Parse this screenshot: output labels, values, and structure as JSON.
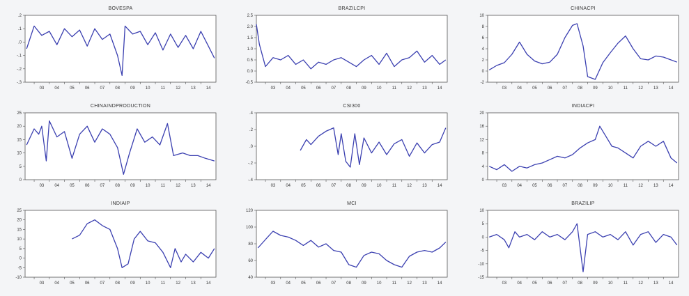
{
  "chart_data": [
    {
      "type": "line",
      "title": "BOVESPA",
      "ylim": [
        -0.3,
        0.2
      ],
      "yticks": [
        ".2",
        ".1",
        ".0",
        "-.1",
        "-.2",
        "-.3"
      ],
      "ytick_values": [
        0.2,
        0.1,
        0.0,
        -0.1,
        -0.2,
        -0.3
      ],
      "xticks": [
        "03",
        "04",
        "05",
        "06",
        "07",
        "08",
        "09",
        "10",
        "11",
        "12",
        "13",
        "14"
      ],
      "x": [
        2002.5,
        2003.0,
        2003.5,
        2004.0,
        2004.5,
        2005.0,
        2005.5,
        2006.0,
        2006.5,
        2007.0,
        2007.5,
        2008.0,
        2008.5,
        2008.8,
        2009.0,
        2009.5,
        2010.0,
        2010.5,
        2011.0,
        2011.5,
        2012.0,
        2012.5,
        2013.0,
        2013.5,
        2014.0,
        2014.5,
        2014.9
      ],
      "series": [
        {
          "values": [
            -0.05,
            0.12,
            0.05,
            0.08,
            -0.02,
            0.1,
            0.04,
            0.09,
            -0.03,
            0.1,
            0.02,
            0.06,
            -0.1,
            -0.25,
            0.12,
            0.06,
            0.08,
            -0.02,
            0.07,
            -0.06,
            0.06,
            -0.04,
            0.05,
            -0.05,
            0.08,
            -0.03,
            -0.12
          ]
        }
      ]
    },
    {
      "type": "line",
      "title": "BRAZILCPI",
      "ylim": [
        -0.5,
        2.5
      ],
      "yticks": [
        "2.5",
        "2.0",
        "1.5",
        "1.0",
        "0.5",
        "0.0",
        "-0.5"
      ],
      "ytick_values": [
        2.5,
        2.0,
        1.5,
        1.0,
        0.5,
        0.0,
        -0.5
      ],
      "xticks": [
        "03",
        "04",
        "05",
        "06",
        "07",
        "08",
        "09",
        "10",
        "11",
        "12",
        "13",
        "14"
      ],
      "x": [
        2002.4,
        2002.6,
        2003.0,
        2003.5,
        2004.0,
        2004.5,
        2005.0,
        2005.5,
        2006.0,
        2006.5,
        2007.0,
        2007.5,
        2008.0,
        2008.5,
        2009.0,
        2009.5,
        2010.0,
        2010.5,
        2011.0,
        2011.5,
        2012.0,
        2012.5,
        2013.0,
        2013.5,
        2014.0,
        2014.5,
        2014.9
      ],
      "series": [
        {
          "values": [
            2.1,
            1.2,
            0.2,
            0.6,
            0.5,
            0.7,
            0.3,
            0.5,
            0.1,
            0.4,
            0.3,
            0.5,
            0.6,
            0.4,
            0.2,
            0.5,
            0.7,
            0.3,
            0.8,
            0.2,
            0.5,
            0.6,
            0.9,
            0.4,
            0.7,
            0.3,
            0.5
          ]
        }
      ]
    },
    {
      "type": "line",
      "title": "CHINACPI",
      "ylim": [
        -2,
        10
      ],
      "yticks": [
        "10",
        "8",
        "6",
        "4",
        "2",
        "0",
        "-2"
      ],
      "ytick_values": [
        10,
        8,
        6,
        4,
        2,
        0,
        -2
      ],
      "xticks": [
        "03",
        "04",
        "05",
        "06",
        "07",
        "08",
        "09",
        "10",
        "11",
        "12",
        "13",
        "14"
      ],
      "x": [
        2002.5,
        2003.0,
        2003.5,
        2004.0,
        2004.5,
        2005.0,
        2005.5,
        2006.0,
        2006.5,
        2007.0,
        2007.5,
        2008.0,
        2008.3,
        2008.7,
        2009.0,
        2009.5,
        2010.0,
        2010.5,
        2011.0,
        2011.5,
        2012.0,
        2012.5,
        2013.0,
        2013.5,
        2014.0,
        2014.5,
        2014.9
      ],
      "series": [
        {
          "values": [
            0.2,
            1.0,
            1.5,
            3.0,
            5.2,
            3.0,
            1.8,
            1.3,
            1.6,
            3.0,
            6.0,
            8.2,
            8.5,
            4.5,
            -1.0,
            -1.5,
            1.5,
            3.3,
            5.0,
            6.3,
            4.0,
            2.2,
            2.0,
            2.7,
            2.5,
            2.0,
            1.6
          ]
        }
      ]
    },
    {
      "type": "line",
      "title": "CHINAINDPRODUCTION",
      "ylim": [
        0,
        25
      ],
      "yticks": [
        "25",
        "20",
        "15",
        "10",
        "5",
        "0"
      ],
      "ytick_values": [
        25,
        20,
        15,
        10,
        5,
        0
      ],
      "xticks": [
        "03",
        "04",
        "05",
        "06",
        "07",
        "08",
        "09",
        "10",
        "11",
        "12",
        "13",
        "14"
      ],
      "x": [
        2002.5,
        2003.0,
        2003.3,
        2003.5,
        2003.8,
        2004.0,
        2004.5,
        2005.0,
        2005.5,
        2006.0,
        2006.5,
        2007.0,
        2007.5,
        2008.0,
        2008.5,
        2008.9,
        2009.3,
        2009.8,
        2010.3,
        2010.8,
        2011.3,
        2011.8,
        2012.2,
        2012.8,
        2013.3,
        2013.8,
        2014.3,
        2014.9
      ],
      "series": [
        {
          "values": [
            13,
            19,
            17,
            20,
            7,
            22,
            16,
            18,
            8,
            17,
            20,
            14,
            19,
            17,
            12,
            2,
            10,
            19,
            14,
            16,
            13,
            21,
            9,
            10,
            9,
            9,
            8,
            7
          ]
        }
      ]
    },
    {
      "type": "line",
      "title": "CSI300",
      "ylim": [
        -0.4,
        0.4
      ],
      "yticks": [
        ".4",
        ".2",
        ".0",
        "-.2",
        "-.4"
      ],
      "ytick_values": [
        0.4,
        0.2,
        0.0,
        -0.2,
        -0.4
      ],
      "xticks": [
        "03",
        "04",
        "05",
        "06",
        "07",
        "08",
        "09",
        "10",
        "11",
        "12",
        "13",
        "14"
      ],
      "x": [
        2005.3,
        2005.7,
        2006.0,
        2006.5,
        2007.0,
        2007.5,
        2007.8,
        2008.0,
        2008.3,
        2008.6,
        2008.9,
        2009.2,
        2009.5,
        2010.0,
        2010.5,
        2011.0,
        2011.5,
        2012.0,
        2012.5,
        2013.0,
        2013.5,
        2014.0,
        2014.5,
        2014.9
      ],
      "series": [
        {
          "values": [
            -0.05,
            0.08,
            0.02,
            0.12,
            0.18,
            0.22,
            -0.1,
            0.15,
            -0.18,
            -0.25,
            0.15,
            -0.22,
            0.1,
            -0.08,
            0.05,
            -0.1,
            0.03,
            0.08,
            -0.12,
            0.04,
            -0.08,
            0.02,
            0.05,
            0.22
          ]
        }
      ]
    },
    {
      "type": "line",
      "title": "INDIACPI",
      "ylim": [
        0,
        20
      ],
      "yticks": [
        "20",
        "16",
        "12",
        "8",
        "4",
        "0"
      ],
      "ytick_values": [
        20,
        16,
        12,
        8,
        4,
        0
      ],
      "xticks": [
        "03",
        "04",
        "05",
        "06",
        "07",
        "08",
        "09",
        "10",
        "11",
        "12",
        "13",
        "14"
      ],
      "x": [
        2002.5,
        2003.0,
        2003.5,
        2004.0,
        2004.5,
        2005.0,
        2005.5,
        2006.0,
        2006.5,
        2007.0,
        2007.5,
        2008.0,
        2008.5,
        2009.0,
        2009.5,
        2009.8,
        2010.2,
        2010.6,
        2011.0,
        2011.5,
        2012.0,
        2012.5,
        2013.0,
        2013.5,
        2014.0,
        2014.5,
        2014.9
      ],
      "series": [
        {
          "values": [
            4.0,
            3.0,
            4.5,
            2.5,
            4.0,
            3.5,
            4.5,
            5.0,
            6.0,
            7.0,
            6.5,
            7.5,
            9.5,
            11.0,
            12.0,
            16.0,
            13.0,
            10.0,
            9.5,
            8.0,
            6.5,
            10.0,
            11.5,
            10.0,
            11.5,
            6.5,
            5.0
          ]
        }
      ]
    },
    {
      "type": "line",
      "title": "INDIAIP",
      "ylim": [
        -10,
        25
      ],
      "yticks": [
        "25",
        "20",
        "15",
        "10",
        "5",
        "0",
        "-5",
        "-10"
      ],
      "ytick_values": [
        25,
        20,
        15,
        10,
        5,
        0,
        -5,
        -10
      ],
      "xticks": [
        "03",
        "04",
        "05",
        "06",
        "07",
        "08",
        "09",
        "10",
        "11",
        "12",
        "13",
        "14"
      ],
      "x": [
        2005.5,
        2006.0,
        2006.5,
        2007.0,
        2007.5,
        2008.0,
        2008.5,
        2008.8,
        2009.2,
        2009.6,
        2010.0,
        2010.5,
        2011.0,
        2011.5,
        2012.0,
        2012.3,
        2012.7,
        2013.0,
        2013.5,
        2014.0,
        2014.5,
        2014.9
      ],
      "series": [
        {
          "values": [
            10,
            12,
            18,
            20,
            17,
            15,
            5,
            -5,
            -3,
            10,
            14,
            9,
            8,
            3,
            -5,
            5,
            -2,
            2,
            -2,
            3,
            0,
            5
          ]
        }
      ]
    },
    {
      "type": "line",
      "title": "MCI",
      "ylim": [
        40,
        120
      ],
      "yticks": [
        "120",
        "100",
        "80",
        "60",
        "40"
      ],
      "ytick_values": [
        120,
        100,
        80,
        60,
        40
      ],
      "xticks": [
        "03",
        "04",
        "05",
        "06",
        "07",
        "08",
        "09",
        "10",
        "11",
        "12",
        "13",
        "14"
      ],
      "x": [
        2002.5,
        2003.0,
        2003.5,
        2004.0,
        2004.5,
        2005.0,
        2005.5,
        2006.0,
        2006.5,
        2007.0,
        2007.5,
        2008.0,
        2008.5,
        2009.0,
        2009.5,
        2010.0,
        2010.5,
        2011.0,
        2011.5,
        2012.0,
        2012.5,
        2013.0,
        2013.5,
        2014.0,
        2014.5,
        2014.9
      ],
      "series": [
        {
          "values": [
            75,
            85,
            95,
            90,
            88,
            84,
            78,
            84,
            76,
            80,
            72,
            70,
            55,
            52,
            66,
            70,
            68,
            60,
            55,
            52,
            65,
            70,
            72,
            70,
            75,
            82
          ]
        }
      ]
    },
    {
      "type": "line",
      "title": "BRAZILIP",
      "ylim": [
        -15,
        10
      ],
      "yticks": [
        "10",
        "5",
        "0",
        "-5",
        "-10",
        "-15"
      ],
      "ytick_values": [
        10,
        5,
        0,
        -5,
        -10,
        -15
      ],
      "xticks": [
        "03",
        "04",
        "05",
        "06",
        "07",
        "08",
        "09",
        "10",
        "11",
        "12",
        "13",
        "14"
      ],
      "x": [
        2002.5,
        2003.0,
        2003.5,
        2003.8,
        2004.2,
        2004.5,
        2005.0,
        2005.5,
        2006.0,
        2006.5,
        2007.0,
        2007.5,
        2008.0,
        2008.3,
        2008.7,
        2009.0,
        2009.5,
        2010.0,
        2010.5,
        2011.0,
        2011.5,
        2012.0,
        2012.5,
        2013.0,
        2013.5,
        2014.0,
        2014.5,
        2014.9
      ],
      "series": [
        {
          "values": [
            0,
            1,
            -1,
            -4,
            2,
            0,
            1,
            -1,
            2,
            0,
            1,
            -1,
            2,
            5,
            -13,
            1,
            2,
            0,
            1,
            -1,
            2,
            -3,
            1,
            2,
            -2,
            1,
            0,
            -3
          ]
        }
      ]
    }
  ]
}
